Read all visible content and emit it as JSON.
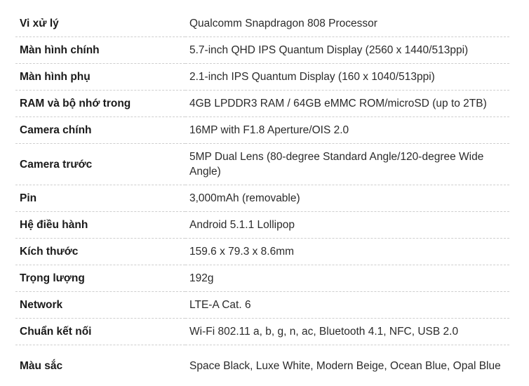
{
  "specs": [
    {
      "label": "Vi xử lý",
      "value": "Qualcomm Snapdragon 808 Processor"
    },
    {
      "label": "Màn hình chính",
      "value": "5.7-inch QHD IPS Quantum Display (2560 x 1440/513ppi)"
    },
    {
      "label": "Màn hình phụ",
      "value": "2.1-inch IPS Quantum Display (160 x 1040/513ppi)"
    },
    {
      "label": "RAM và bộ nhớ trong",
      "value": "4GB LPDDR3 RAM / 64GB eMMC ROM/microSD (up to 2TB)"
    },
    {
      "label": "Camera chính",
      "value": "16MP with F1.8 Aperture/OIS 2.0"
    },
    {
      "label": "Camera trước",
      "value": "5MP Dual Lens (80-degree Standard Angle/120-degree Wide Angle)"
    },
    {
      "label": "Pin",
      "value": "3,000mAh (removable)"
    },
    {
      "label": "Hệ điều hành",
      "value": "Android 5.1.1 Lollipop"
    },
    {
      "label": "Kích thước",
      "value": "159.6 x 79.3 x 8.6mm"
    },
    {
      "label": "Trọng lượng",
      "value": "192g"
    },
    {
      "label": "Network",
      "value": "LTE-A Cat. 6"
    },
    {
      "label": "Chuẩn kết nối",
      "value": "Wi-Fi 802.11 a, b, g, n, ac, Bluetooth 4.1, NFC, USB 2.0"
    },
    {
      "label": "Màu sắc",
      "value": "Space Black, Luxe White, Modern Beige, Ocean Blue, Opal Blue"
    }
  ]
}
